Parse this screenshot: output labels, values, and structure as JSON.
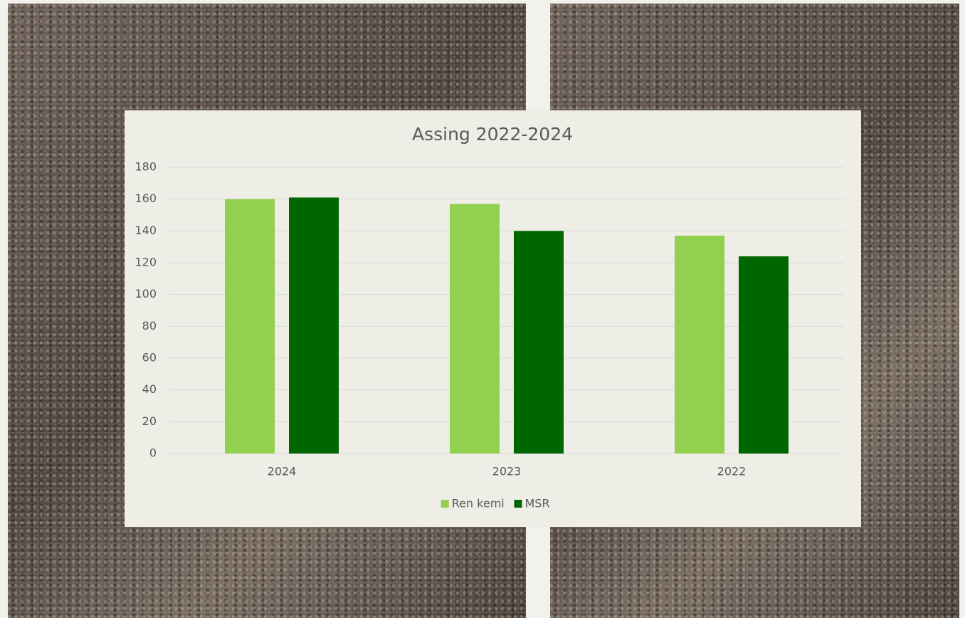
{
  "chart_data": {
    "type": "bar",
    "title": "Assing 2022-2024",
    "categories": [
      "2024",
      "2023",
      "2022"
    ],
    "series": [
      {
        "name": "Ren kemi",
        "color": "#92d050",
        "values": [
          160,
          157,
          137
        ]
      },
      {
        "name": "MSR",
        "color": "#006600",
        "values": [
          161,
          140,
          124
        ]
      }
    ],
    "ylim": [
      0,
      180
    ],
    "yticks": [
      0,
      20,
      40,
      60,
      80,
      100,
      120,
      140,
      160,
      180
    ],
    "grid": true,
    "legend": "bottom"
  }
}
